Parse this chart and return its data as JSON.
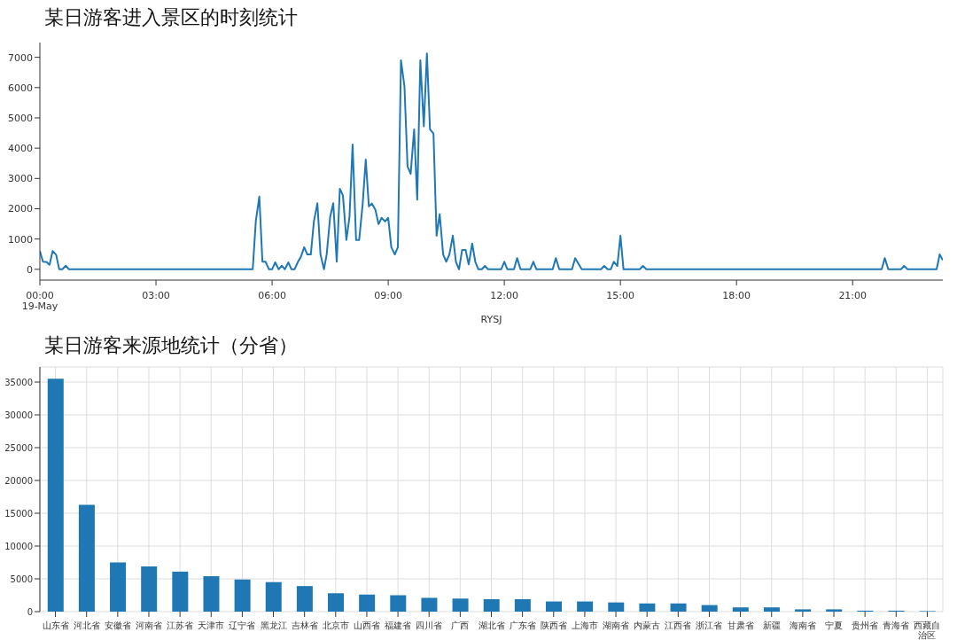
{
  "chart_data": [
    {
      "type": "line",
      "title": "某日游客进入景区的时刻统计",
      "xlabel": "RYSJ",
      "x": [
        0,
        0.08,
        0.17,
        0.25,
        0.33,
        0.42,
        0.5,
        0.58,
        0.67,
        0.75,
        5.5,
        5.58,
        5.67,
        5.75,
        5.83,
        5.92,
        6.0,
        6.08,
        6.17,
        6.25,
        6.33,
        6.42,
        6.5,
        6.58,
        6.67,
        6.74,
        6.83,
        6.91,
        7.0,
        7.08,
        7.17,
        7.25,
        7.34,
        7.41,
        7.5,
        7.58,
        7.67,
        7.75,
        7.83,
        7.92,
        8.0,
        8.08,
        8.17,
        8.25,
        8.34,
        8.42,
        8.5,
        8.58,
        8.67,
        8.75,
        8.83,
        8.92,
        9.0,
        9.08,
        9.17,
        9.25,
        9.33,
        9.42,
        9.5,
        9.58,
        9.67,
        9.75,
        9.83,
        9.92,
        10.0,
        10.08,
        10.17,
        10.25,
        10.33,
        10.42,
        10.5,
        10.58,
        10.67,
        10.75,
        10.83,
        10.91,
        11.0,
        11.08,
        11.17,
        11.25,
        11.33,
        11.42,
        11.5,
        11.58,
        11.92,
        12.0,
        12.08,
        12.25,
        12.33,
        12.42,
        12.67,
        12.75,
        12.83,
        13.25,
        13.33,
        13.42,
        13.75,
        13.83,
        14.0,
        14.5,
        14.58,
        14.67,
        14.75,
        14.83,
        14.92,
        15.0,
        15.08,
        15.5,
        15.58,
        15.67,
        21.75,
        21.83,
        21.92,
        22.25,
        22.33,
        22.42,
        23.17,
        23.25,
        23.33
      ],
      "series": [
        {
          "color": "#1f77b4",
          "values": [
            600,
            250,
            240,
            150,
            600,
            480,
            0,
            0,
            120,
            0,
            0,
            1600,
            2400,
            250,
            250,
            0,
            0,
            230,
            0,
            120,
            0,
            230,
            0,
            0,
            250,
            400,
            730,
            490,
            490,
            1580,
            2180,
            490,
            0,
            490,
            1730,
            2180,
            250,
            2660,
            2440,
            970,
            1730,
            4120,
            970,
            970,
            2150,
            3620,
            2080,
            2170,
            1960,
            1490,
            1700,
            1580,
            1700,
            730,
            490,
            730,
            6900,
            6040,
            3390,
            3150,
            4620,
            2300,
            6900,
            4720,
            7130,
            4620,
            4480,
            1110,
            1820,
            490,
            250,
            490,
            1110,
            250,
            0,
            640,
            640,
            160,
            850,
            250,
            0,
            0,
            110,
            0,
            0,
            250,
            0,
            0,
            370,
            0,
            0,
            250,
            0,
            0,
            370,
            0,
            0,
            370,
            0,
            0,
            110,
            0,
            0,
            250,
            110,
            1110,
            0,
            0,
            110,
            0,
            0,
            370,
            0,
            0,
            110,
            0,
            0,
            490,
            300
          ]
        }
      ],
      "xlim": [
        0,
        23.33
      ],
      "xticks": [
        {
          "value": 0,
          "label": "00:00\n19-May"
        },
        {
          "value": 3,
          "label": "03:00"
        },
        {
          "value": 6,
          "label": "06:00"
        },
        {
          "value": 9,
          "label": "09:00"
        },
        {
          "value": 12,
          "label": "12:00"
        },
        {
          "value": 15,
          "label": "15:00"
        },
        {
          "value": 18,
          "label": "18:00"
        },
        {
          "value": 21,
          "label": "21:00"
        }
      ],
      "ylim": [
        -357,
        7487
      ],
      "yticks": [
        0,
        1000,
        2000,
        3000,
        4000,
        5000,
        6000,
        7000
      ]
    },
    {
      "type": "bar",
      "title": "某日游客来源地统计（分省）",
      "categories": [
        "山东省",
        "河北省",
        "安徽省",
        "河南省",
        "江苏省",
        "天津市",
        "辽宁省",
        "黑龙江",
        "吉林省",
        "北京市",
        "山西省",
        "福建省",
        "四川省",
        "广西",
        "湖北省",
        "广东省",
        "陕西省",
        "上海市",
        "湖南省",
        "内蒙古",
        "江西省",
        "浙江省",
        "甘肃省",
        "新疆",
        "海南省",
        "宁夏",
        "贵州省",
        "青海省",
        "西藏自治区"
      ],
      "values": [
        35500,
        16300,
        7500,
        6900,
        6100,
        5400,
        4900,
        4500,
        3900,
        2800,
        2600,
        2500,
        2100,
        2000,
        1900,
        1900,
        1550,
        1550,
        1400,
        1250,
        1250,
        1000,
        650,
        650,
        350,
        350,
        150,
        150,
        80
      ],
      "color": "#1f77b4",
      "ylim": [
        0,
        37300
      ],
      "yticks": [
        0,
        5000,
        10000,
        15000,
        20000,
        25000,
        30000,
        35000
      ],
      "grid": true
    }
  ]
}
